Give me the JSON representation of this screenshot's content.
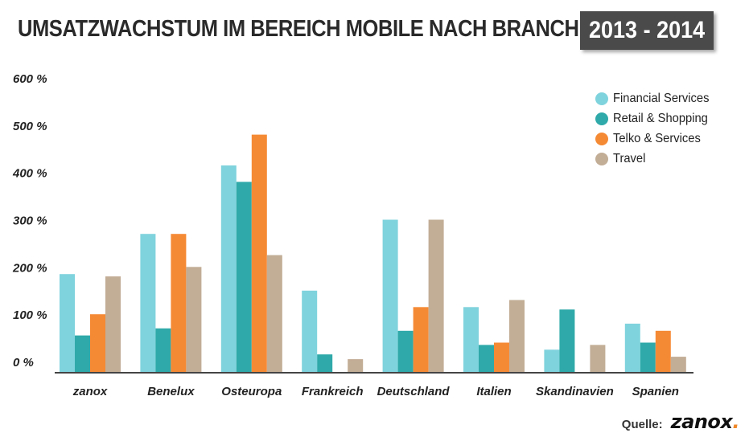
{
  "header": {
    "title": "UMSATZWACHSTUM IM BEREICH MOBILE NACH BRANCHE",
    "period": "2013 - 2014"
  },
  "source": {
    "label": "Quelle:",
    "logo_text": "zanox",
    "logo_dot": "."
  },
  "colors": {
    "financial": "#7fd3dd",
    "retail": "#2fa9a9",
    "telko": "#f58a35",
    "travel": "#c2ad96",
    "axis": "#444444"
  },
  "chart_data": {
    "type": "bar",
    "title": "UMSATZWACHSTUM IM BEREICH MOBILE NACH BRANCHE",
    "subtitle": "2013 - 2014",
    "categories": [
      "zanox",
      "Benelux",
      "Osteuropa",
      "Frankreich",
      "Deutschland",
      "Italien",
      "Skandinavien",
      "Spanien"
    ],
    "series": [
      {
        "name": "Financial Services",
        "color": "#7fd3dd",
        "values": [
          185,
          270,
          415,
          150,
          300,
          115,
          25,
          80
        ]
      },
      {
        "name": "Retail & Shopping",
        "color": "#2fa9a9",
        "values": [
          55,
          70,
          380,
          15,
          65,
          35,
          110,
          40
        ]
      },
      {
        "name": "Telko & Services",
        "color": "#f58a35",
        "values": [
          100,
          270,
          480,
          0,
          115,
          40,
          0,
          65
        ]
      },
      {
        "name": "Travel",
        "color": "#c2ad96",
        "values": [
          180,
          200,
          225,
          5,
          300,
          130,
          35,
          10
        ]
      }
    ],
    "yticks": [
      "600 %",
      "500 %",
      "400 %",
      "300 %",
      "200 %",
      "100 %",
      "0 %"
    ],
    "ytick_values": [
      600,
      500,
      400,
      300,
      200,
      100,
      0
    ],
    "ylim": [
      -20,
      600
    ],
    "grid": false,
    "legend_position": "top-right",
    "xlabel": "",
    "ylabel": ""
  }
}
